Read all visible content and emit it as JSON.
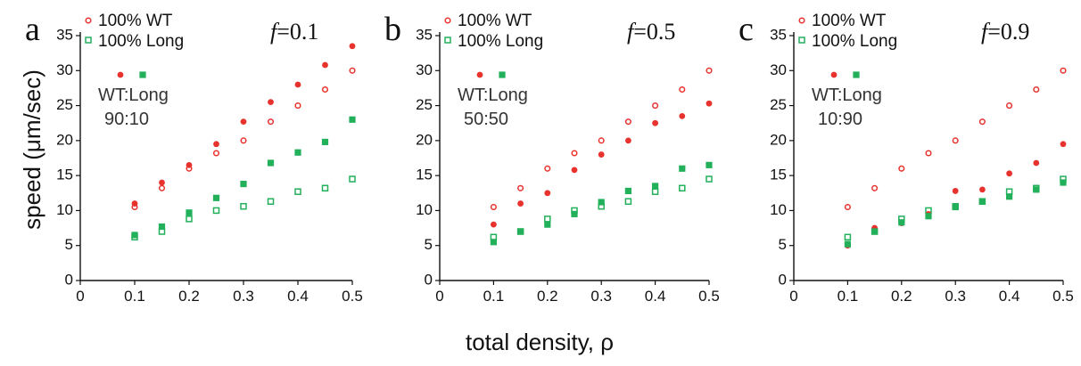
{
  "colors": {
    "wt": "#e8322e",
    "long": "#22b05a"
  },
  "y_label": "speed (μm/sec)",
  "x_label": "total density, ρ",
  "chart_data": [
    {
      "type": "scatter",
      "panel": "a",
      "f_label": "f=0.1",
      "f_prefix": "f",
      "f_value": "=0.1",
      "ratio_label": "WT:Long",
      "ratio_value": "90:10",
      "legend": [
        "100% WT",
        "100% Long"
      ],
      "xlim": [
        0,
        0.5
      ],
      "ylim": [
        0,
        35
      ],
      "x_ticks": [
        "0",
        "0.1",
        "0.2",
        "0.3",
        "0.4",
        "0.5"
      ],
      "y_ticks": [
        "0",
        "5",
        "10",
        "15",
        "20",
        "25",
        "30",
        "35"
      ],
      "x": [
        0.1,
        0.15,
        0.2,
        0.25,
        0.3,
        0.35,
        0.4,
        0.45,
        0.5
      ],
      "series": [
        {
          "name": "100% WT",
          "marker": "open-circle",
          "color": "wt",
          "values": [
            10.5,
            13.2,
            16.0,
            18.2,
            20.0,
            22.7,
            25.0,
            27.3,
            30.0
          ]
        },
        {
          "name": "100% Long",
          "marker": "open-square",
          "color": "long",
          "values": [
            6.2,
            7.0,
            8.8,
            10.0,
            10.6,
            11.3,
            12.7,
            13.2,
            14.5
          ]
        },
        {
          "marker": "filled-circle",
          "color": "wt",
          "values": [
            11.0,
            14.0,
            16.5,
            19.5,
            22.7,
            25.5,
            28.0,
            30.8,
            33.5
          ]
        },
        {
          "marker": "filled-square",
          "color": "long",
          "values": [
            6.5,
            7.7,
            9.7,
            11.8,
            13.8,
            16.8,
            18.3,
            19.8,
            23.0
          ]
        }
      ]
    },
    {
      "type": "scatter",
      "panel": "b",
      "f_label": "f=0.5",
      "f_prefix": "f",
      "f_value": "=0.5",
      "ratio_label": "WT:Long",
      "ratio_value": "50:50",
      "legend": [
        "100% WT",
        "100% Long"
      ],
      "xlim": [
        0,
        0.5
      ],
      "ylim": [
        0,
        35
      ],
      "x_ticks": [
        "0",
        "0.1",
        "0.2",
        "0.3",
        "0.4",
        "0.5"
      ],
      "y_ticks": [
        "0",
        "5",
        "10",
        "15",
        "20",
        "25",
        "30",
        "35"
      ],
      "x": [
        0.1,
        0.15,
        0.2,
        0.25,
        0.3,
        0.35,
        0.4,
        0.45,
        0.5
      ],
      "series": [
        {
          "name": "100% WT",
          "marker": "open-circle",
          "color": "wt",
          "values": [
            10.5,
            13.2,
            16.0,
            18.2,
            20.0,
            22.7,
            25.0,
            27.3,
            30.0
          ]
        },
        {
          "name": "100% Long",
          "marker": "open-square",
          "color": "long",
          "values": [
            6.2,
            7.0,
            8.8,
            10.0,
            10.6,
            11.3,
            12.7,
            13.2,
            14.5
          ]
        },
        {
          "marker": "filled-circle",
          "color": "wt",
          "values": [
            8.0,
            11.0,
            12.5,
            15.8,
            18.0,
            20.0,
            22.5,
            23.5,
            25.3
          ]
        },
        {
          "marker": "filled-square",
          "color": "long",
          "values": [
            5.5,
            7.0,
            8.0,
            9.5,
            11.2,
            12.8,
            13.5,
            16.0,
            16.5
          ]
        }
      ]
    },
    {
      "type": "scatter",
      "panel": "c",
      "f_label": "f=0.9",
      "f_prefix": "f",
      "f_value": "=0.9",
      "ratio_label": "WT:Long",
      "ratio_value": "10:90",
      "legend": [
        "100% WT",
        "100% Long"
      ],
      "xlim": [
        0,
        0.5
      ],
      "ylim": [
        0,
        35
      ],
      "x_ticks": [
        "0",
        "0.1",
        "0.2",
        "0.3",
        "0.4",
        "0.5"
      ],
      "y_ticks": [
        "0",
        "5",
        "10",
        "15",
        "20",
        "25",
        "30",
        "35"
      ],
      "x": [
        0.1,
        0.15,
        0.2,
        0.25,
        0.3,
        0.35,
        0.4,
        0.45,
        0.5
      ],
      "series": [
        {
          "name": "100% WT",
          "marker": "open-circle",
          "color": "wt",
          "values": [
            10.5,
            13.2,
            16.0,
            18.2,
            20.0,
            22.7,
            25.0,
            27.3,
            30.0
          ]
        },
        {
          "name": "100% Long",
          "marker": "open-square",
          "color": "long",
          "values": [
            6.2,
            7.0,
            8.8,
            10.0,
            10.6,
            11.3,
            12.7,
            13.2,
            14.5
          ]
        },
        {
          "marker": "filled-circle",
          "color": "wt",
          "values": [
            5.0,
            7.5,
            8.2,
            9.5,
            12.8,
            13.0,
            15.3,
            16.8,
            19.5
          ]
        },
        {
          "marker": "filled-square",
          "color": "long",
          "values": [
            5.2,
            7.0,
            8.3,
            9.2,
            10.5,
            11.3,
            12.0,
            13.0,
            14.0
          ]
        }
      ]
    }
  ]
}
